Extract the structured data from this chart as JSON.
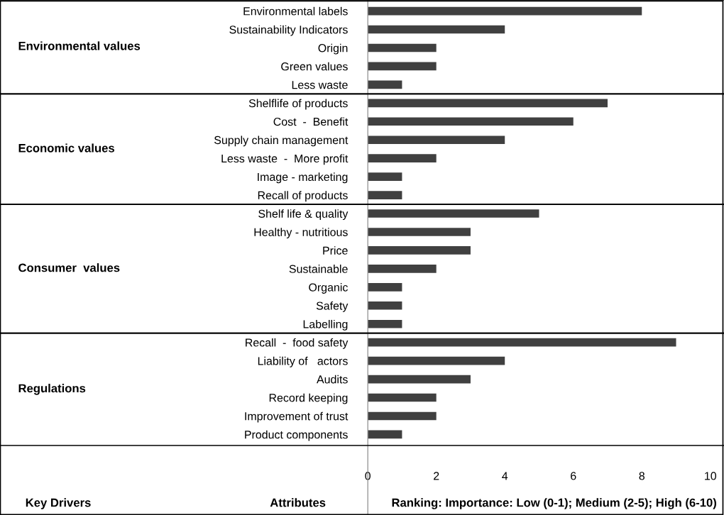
{
  "chart_data": {
    "type": "bar",
    "orientation": "horizontal",
    "categories": [
      "Environmental labels",
      "Sustainability Indicators",
      "Origin",
      "Green values",
      "Less waste",
      "Shelflife of products",
      "Cost  -  Benefit",
      "Supply chain management",
      "Less waste  -  More profit",
      "Image - marketing",
      "Recall of products",
      "Shelf life & quality",
      "Healthy - nutritious",
      "Price",
      "Sustainable",
      "Organic",
      "Safety",
      "Labelling",
      "Recall  -  food safety",
      "Liability of   actors",
      "Audits",
      "Record keeping",
      "Improvement of trust",
      "Product components"
    ],
    "values": [
      8,
      4,
      2,
      2,
      1,
      7,
      6,
      4,
      2,
      1,
      1,
      5,
      3,
      3,
      2,
      1,
      1,
      1,
      9,
      4,
      3,
      2,
      2,
      1
    ],
    "color": "#404040",
    "xlim": [
      0,
      10.25
    ],
    "xticks": [
      0,
      2,
      4,
      6,
      8,
      10
    ],
    "grid": false,
    "annotations": [
      "Environmental values",
      "Economic values",
      "Consumer  values",
      "Regulations",
      "Key Drivers",
      "Attributes",
      "Ranking: Importance: Low (0-1); Medium (2-5); High (6-10)"
    ]
  }
}
